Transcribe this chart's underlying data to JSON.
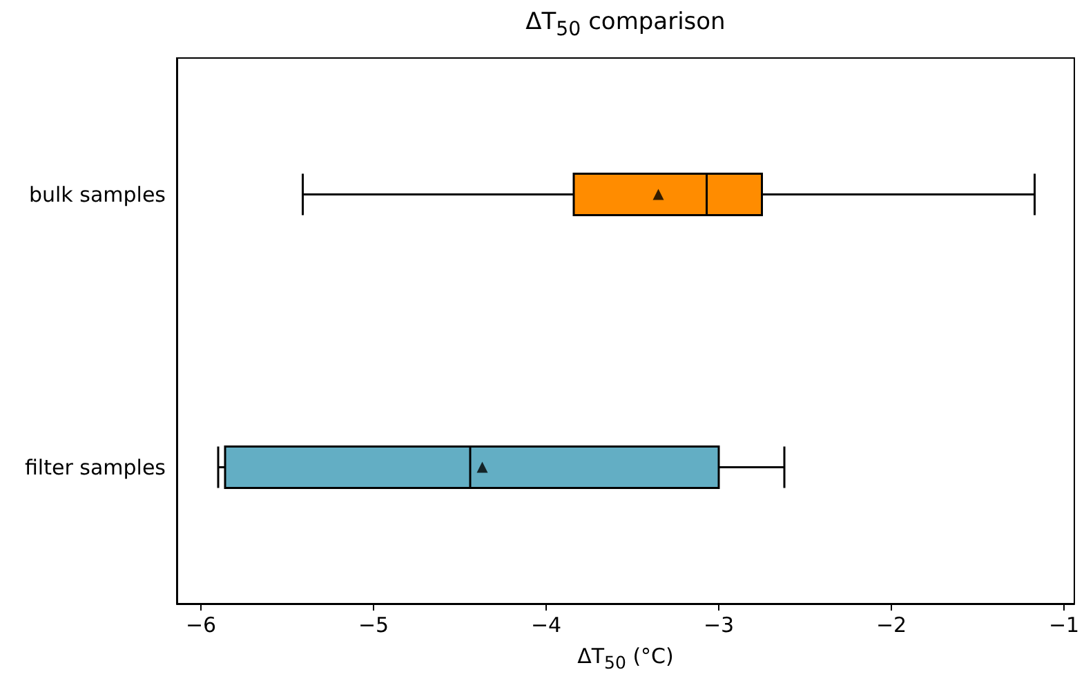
{
  "chart_data": {
    "type": "box",
    "orientation": "horizontal",
    "title": "ΔT$_{50}$ comparison",
    "xlabel": "ΔT$_{50}$ (°C)",
    "categories": [
      "bulk samples",
      "filter samples"
    ],
    "colors": [
      "#ff8c00",
      "#63aec4"
    ],
    "boxes": [
      {
        "low": -5.41,
        "q1": -3.84,
        "median": -3.07,
        "q3": -2.75,
        "high": -1.17,
        "mean": -3.35
      },
      {
        "low": -5.9,
        "q1": -5.86,
        "median": -4.44,
        "q3": -3.0,
        "high": -2.62,
        "mean": -4.37
      }
    ],
    "xlim": [
      -6.14,
      -0.94
    ],
    "xticks": [
      -6,
      -5,
      -4,
      -3,
      -2,
      -1
    ],
    "grid": false
  }
}
